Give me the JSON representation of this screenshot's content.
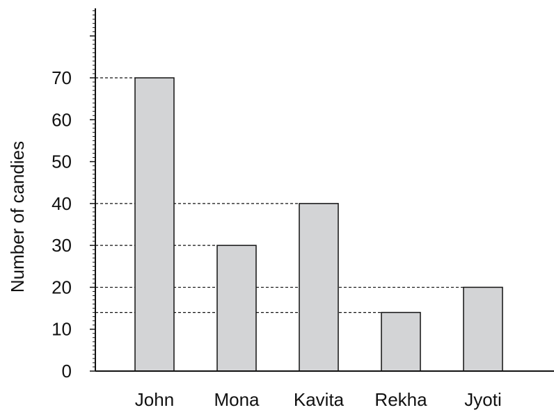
{
  "chart_data": {
    "type": "bar",
    "title": "",
    "xlabel": "",
    "ylabel": "Number of candies",
    "categories": [
      "John",
      "Mona",
      "Kavita",
      "Rekha",
      "Jyoti"
    ],
    "values": [
      70,
      30,
      40,
      14,
      20
    ],
    "ylim": [
      0,
      70
    ],
    "yticks": [
      0,
      10,
      20,
      30,
      40,
      50,
      60,
      70
    ],
    "minor_tick_step": 1,
    "guide_lines": [
      70,
      40,
      30,
      20,
      14
    ],
    "grid": false,
    "legend": "none",
    "colors": {
      "bar_fill": "#d3d4d6",
      "bar_stroke": "#111111",
      "axis": "#111111",
      "guide": "#111111"
    }
  }
}
